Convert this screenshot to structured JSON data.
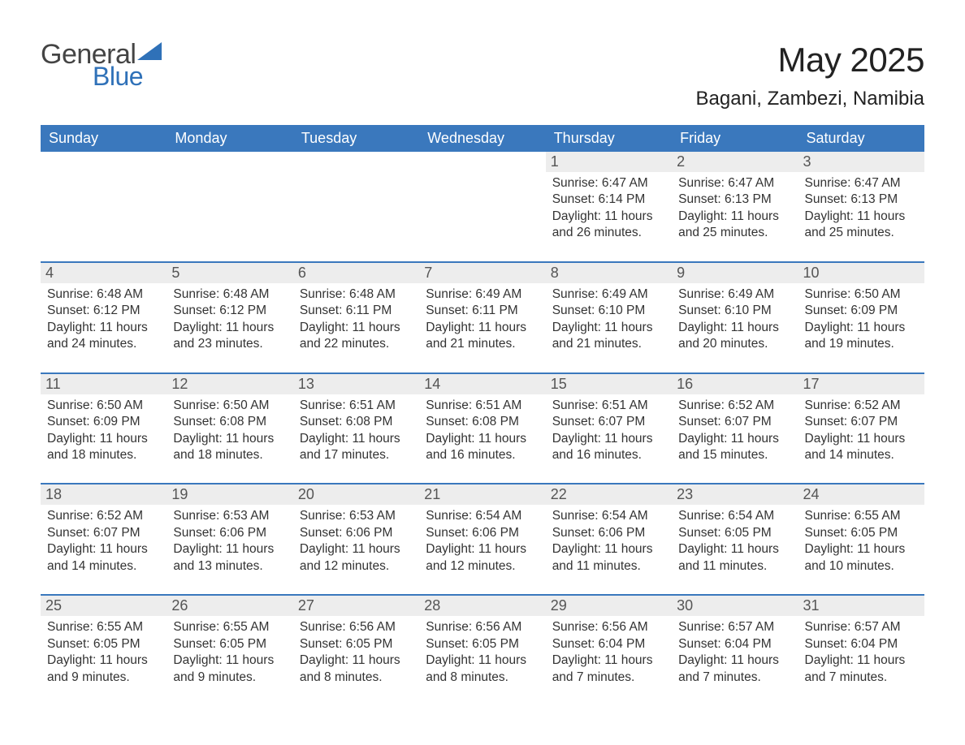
{
  "logo": {
    "text_general": "General",
    "text_blue": "Blue",
    "triangle_color": "#2f71b8"
  },
  "title": "May 2025",
  "location": "Bagani, Zambezi, Namibia",
  "colors": {
    "header_bg": "#3a78bd",
    "header_text": "#ffffff",
    "daynum_bg": "#ededed",
    "daynum_text": "#555555",
    "body_text": "#333333",
    "row_border": "#3a78bd",
    "page_bg": "#ffffff",
    "logo_blue": "#2f71b8",
    "logo_gray": "#444444"
  },
  "typography": {
    "title_fontsize": 42,
    "location_fontsize": 24,
    "weekday_fontsize": 18,
    "daynum_fontsize": 18,
    "info_fontsize": 15.5,
    "font_family": "Arial"
  },
  "weekdays": [
    "Sunday",
    "Monday",
    "Tuesday",
    "Wednesday",
    "Thursday",
    "Friday",
    "Saturday"
  ],
  "layout": {
    "columns": 7,
    "rows": 5,
    "blank_leading_cells": 4
  },
  "days": [
    {
      "n": 1,
      "sunrise": "6:47 AM",
      "sunset": "6:14 PM",
      "daylight": "11 hours and 26 minutes."
    },
    {
      "n": 2,
      "sunrise": "6:47 AM",
      "sunset": "6:13 PM",
      "daylight": "11 hours and 25 minutes."
    },
    {
      "n": 3,
      "sunrise": "6:47 AM",
      "sunset": "6:13 PM",
      "daylight": "11 hours and 25 minutes."
    },
    {
      "n": 4,
      "sunrise": "6:48 AM",
      "sunset": "6:12 PM",
      "daylight": "11 hours and 24 minutes."
    },
    {
      "n": 5,
      "sunrise": "6:48 AM",
      "sunset": "6:12 PM",
      "daylight": "11 hours and 23 minutes."
    },
    {
      "n": 6,
      "sunrise": "6:48 AM",
      "sunset": "6:11 PM",
      "daylight": "11 hours and 22 minutes."
    },
    {
      "n": 7,
      "sunrise": "6:49 AM",
      "sunset": "6:11 PM",
      "daylight": "11 hours and 21 minutes."
    },
    {
      "n": 8,
      "sunrise": "6:49 AM",
      "sunset": "6:10 PM",
      "daylight": "11 hours and 21 minutes."
    },
    {
      "n": 9,
      "sunrise": "6:49 AM",
      "sunset": "6:10 PM",
      "daylight": "11 hours and 20 minutes."
    },
    {
      "n": 10,
      "sunrise": "6:50 AM",
      "sunset": "6:09 PM",
      "daylight": "11 hours and 19 minutes."
    },
    {
      "n": 11,
      "sunrise": "6:50 AM",
      "sunset": "6:09 PM",
      "daylight": "11 hours and 18 minutes."
    },
    {
      "n": 12,
      "sunrise": "6:50 AM",
      "sunset": "6:08 PM",
      "daylight": "11 hours and 18 minutes."
    },
    {
      "n": 13,
      "sunrise": "6:51 AM",
      "sunset": "6:08 PM",
      "daylight": "11 hours and 17 minutes."
    },
    {
      "n": 14,
      "sunrise": "6:51 AM",
      "sunset": "6:08 PM",
      "daylight": "11 hours and 16 minutes."
    },
    {
      "n": 15,
      "sunrise": "6:51 AM",
      "sunset": "6:07 PM",
      "daylight": "11 hours and 16 minutes."
    },
    {
      "n": 16,
      "sunrise": "6:52 AM",
      "sunset": "6:07 PM",
      "daylight": "11 hours and 15 minutes."
    },
    {
      "n": 17,
      "sunrise": "6:52 AM",
      "sunset": "6:07 PM",
      "daylight": "11 hours and 14 minutes."
    },
    {
      "n": 18,
      "sunrise": "6:52 AM",
      "sunset": "6:07 PM",
      "daylight": "11 hours and 14 minutes."
    },
    {
      "n": 19,
      "sunrise": "6:53 AM",
      "sunset": "6:06 PM",
      "daylight": "11 hours and 13 minutes."
    },
    {
      "n": 20,
      "sunrise": "6:53 AM",
      "sunset": "6:06 PM",
      "daylight": "11 hours and 12 minutes."
    },
    {
      "n": 21,
      "sunrise": "6:54 AM",
      "sunset": "6:06 PM",
      "daylight": "11 hours and 12 minutes."
    },
    {
      "n": 22,
      "sunrise": "6:54 AM",
      "sunset": "6:06 PM",
      "daylight": "11 hours and 11 minutes."
    },
    {
      "n": 23,
      "sunrise": "6:54 AM",
      "sunset": "6:05 PM",
      "daylight": "11 hours and 11 minutes."
    },
    {
      "n": 24,
      "sunrise": "6:55 AM",
      "sunset": "6:05 PM",
      "daylight": "11 hours and 10 minutes."
    },
    {
      "n": 25,
      "sunrise": "6:55 AM",
      "sunset": "6:05 PM",
      "daylight": "11 hours and 9 minutes."
    },
    {
      "n": 26,
      "sunrise": "6:55 AM",
      "sunset": "6:05 PM",
      "daylight": "11 hours and 9 minutes."
    },
    {
      "n": 27,
      "sunrise": "6:56 AM",
      "sunset": "6:05 PM",
      "daylight": "11 hours and 8 minutes."
    },
    {
      "n": 28,
      "sunrise": "6:56 AM",
      "sunset": "6:05 PM",
      "daylight": "11 hours and 8 minutes."
    },
    {
      "n": 29,
      "sunrise": "6:56 AM",
      "sunset": "6:04 PM",
      "daylight": "11 hours and 7 minutes."
    },
    {
      "n": 30,
      "sunrise": "6:57 AM",
      "sunset": "6:04 PM",
      "daylight": "11 hours and 7 minutes."
    },
    {
      "n": 31,
      "sunrise": "6:57 AM",
      "sunset": "6:04 PM",
      "daylight": "11 hours and 7 minutes."
    }
  ],
  "labels": {
    "sunrise": "Sunrise:",
    "sunset": "Sunset:",
    "daylight": "Daylight:"
  }
}
